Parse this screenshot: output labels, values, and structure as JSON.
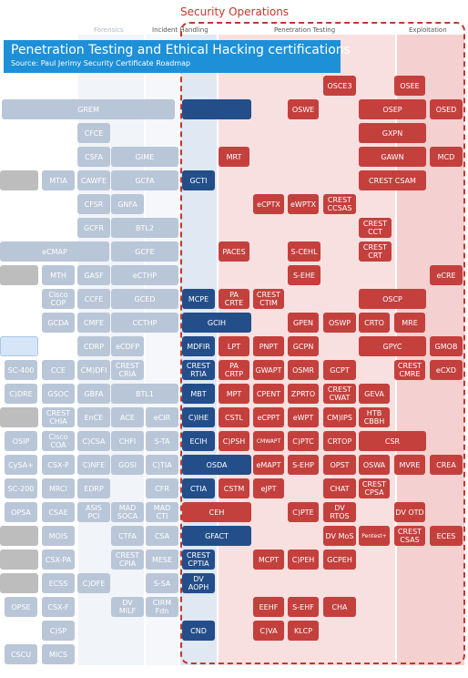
{
  "header": {
    "section_title": "Security Operations",
    "banner_title": "Penetration Testing and Ethical Hacking certifications",
    "banner_subtitle": "Source: Paul Jerimy Security Certificate Roadmap"
  },
  "columns": {
    "forensics": "Forensics",
    "incident": "Incident Handling",
    "pentest": "Penetration Testing",
    "exploitation": "Exploitation"
  },
  "colors": {
    "frame": "#c0392b",
    "banner": "#1e90d8",
    "pale_cert": "#b9c6d8",
    "grey_cert": "#bdbdbd",
    "navy_cert": "#234e8a",
    "red_cert": "#c4403d"
  },
  "certs": [
    {
      "label": "OSCE3",
      "style": "red"
    },
    {
      "label": "OSEE",
      "style": "red"
    },
    {
      "label": "GREM",
      "style": "pale"
    },
    {
      "label": "",
      "style": "navy"
    },
    {
      "label": "OSWE",
      "style": "red"
    },
    {
      "label": "OSEP",
      "style": "red"
    },
    {
      "label": "OSED",
      "style": "red"
    },
    {
      "label": "CFCE",
      "style": "pale"
    },
    {
      "label": "GXPN",
      "style": "red"
    },
    {
      "label": "CSFA",
      "style": "pale"
    },
    {
      "label": "GIME",
      "style": "pale"
    },
    {
      "label": "MRT",
      "style": "red"
    },
    {
      "label": "GAWN",
      "style": "red"
    },
    {
      "label": "MCD",
      "style": "red"
    },
    {
      "label": "",
      "style": "grey"
    },
    {
      "label": "MTIA",
      "style": "pale"
    },
    {
      "label": "CAWFE",
      "style": "pale"
    },
    {
      "label": "GCFA",
      "style": "pale"
    },
    {
      "label": "GCTI",
      "style": "navy"
    },
    {
      "label": "CREST CSAM",
      "style": "red"
    },
    {
      "label": "CFSR",
      "style": "pale"
    },
    {
      "label": "GNFA",
      "style": "pale"
    },
    {
      "label": "eCPTX",
      "style": "red"
    },
    {
      "label": "eWPTX",
      "style": "red"
    },
    {
      "label": "CREST\nCCSAS",
      "style": "red"
    },
    {
      "label": "GCFR",
      "style": "pale"
    },
    {
      "label": "BTL2",
      "style": "pale"
    },
    {
      "label": "CREST\nCCT",
      "style": "red"
    },
    {
      "label": "eCMAP",
      "style": "pale"
    },
    {
      "label": "GCFE",
      "style": "pale"
    },
    {
      "label": "PACES",
      "style": "red"
    },
    {
      "label": "S-CEHL",
      "style": "red"
    },
    {
      "label": "CREST\nCRT",
      "style": "red"
    },
    {
      "label": "",
      "style": "grey"
    },
    {
      "label": "MTH",
      "style": "pale"
    },
    {
      "label": "GASF",
      "style": "pale"
    },
    {
      "label": "eCTHP",
      "style": "pale"
    },
    {
      "label": "S-EHE",
      "style": "red"
    },
    {
      "label": "eCRE",
      "style": "red"
    },
    {
      "label": "Cisco\nCOP",
      "style": "pale"
    },
    {
      "label": "CCFE",
      "style": "pale"
    },
    {
      "label": "GCED",
      "style": "pale"
    },
    {
      "label": "MCPE",
      "style": "navy"
    },
    {
      "label": "PA\nCRTE",
      "style": "red"
    },
    {
      "label": "CREST\nCTIM",
      "style": "red"
    },
    {
      "label": "OSCP",
      "style": "red"
    },
    {
      "label": "GCDA",
      "style": "pale"
    },
    {
      "label": "CMFE",
      "style": "pale"
    },
    {
      "label": "CCTHP",
      "style": "pale"
    },
    {
      "label": "GCIH",
      "style": "navy"
    },
    {
      "label": "GPEN",
      "style": "red"
    },
    {
      "label": "OSWP",
      "style": "red"
    },
    {
      "label": "CRTO",
      "style": "red"
    },
    {
      "label": "MRE",
      "style": "red"
    },
    {
      "label": "",
      "style": "pblue"
    },
    {
      "label": "CDRP",
      "style": "pale"
    },
    {
      "label": "eCDFP",
      "style": "pale"
    },
    {
      "label": "MDFIR",
      "style": "navy"
    },
    {
      "label": "LPT",
      "style": "red"
    },
    {
      "label": "PNPT",
      "style": "red"
    },
    {
      "label": "GCPN",
      "style": "red"
    },
    {
      "label": "GPYC",
      "style": "red"
    },
    {
      "label": "GMOB",
      "style": "red"
    },
    {
      "label": "SC-400",
      "style": "pale"
    },
    {
      "label": "CCE",
      "style": "pale"
    },
    {
      "label": "CM)DFI",
      "style": "pale"
    },
    {
      "label": "CREST\nCRIA",
      "style": "pale"
    },
    {
      "label": "CREST\nRTIA",
      "style": "navy"
    },
    {
      "label": "PA\nCRTP",
      "style": "red"
    },
    {
      "label": "GWAPT",
      "style": "red"
    },
    {
      "label": "OSMR",
      "style": "red"
    },
    {
      "label": "GCPT",
      "style": "red"
    },
    {
      "label": "CREST\nCMRE",
      "style": "red"
    },
    {
      "label": "eCXD",
      "style": "red"
    },
    {
      "label": "C)DRE",
      "style": "pale"
    },
    {
      "label": "GSOC",
      "style": "pale"
    },
    {
      "label": "GBFA",
      "style": "pale"
    },
    {
      "label": "BTL1",
      "style": "pale"
    },
    {
      "label": "MBT",
      "style": "navy"
    },
    {
      "label": "MPT",
      "style": "red"
    },
    {
      "label": "CPENT",
      "style": "red"
    },
    {
      "label": "ZPRTO",
      "style": "red"
    },
    {
      "label": "CREST\nCWAT",
      "style": "red"
    },
    {
      "label": "GEVA",
      "style": "red"
    },
    {
      "label": "",
      "style": "grey"
    },
    {
      "label": "CREST\nCHIA",
      "style": "pale"
    },
    {
      "label": "EnCE",
      "style": "pale"
    },
    {
      "label": "ACE",
      "style": "pale"
    },
    {
      "label": "eCIR",
      "style": "pale"
    },
    {
      "label": "C)IHE",
      "style": "navy"
    },
    {
      "label": "CSTL",
      "style": "red"
    },
    {
      "label": "eCPPT",
      "style": "red"
    },
    {
      "label": "eWPT",
      "style": "red"
    },
    {
      "label": "CM)IPS",
      "style": "red"
    },
    {
      "label": "HTB\nCBBH",
      "style": "red"
    },
    {
      "label": "OSIP",
      "style": "pale"
    },
    {
      "label": "Cisco\nCOA",
      "style": "pale"
    },
    {
      "label": "C)CSA",
      "style": "pale"
    },
    {
      "label": "CHFI",
      "style": "pale"
    },
    {
      "label": "S-TA",
      "style": "pale"
    },
    {
      "label": "ECIH",
      "style": "navy"
    },
    {
      "label": "C)PSH",
      "style": "red"
    },
    {
      "label": "CMWAPT",
      "style": "red",
      "small": true
    },
    {
      "label": "C)PTC",
      "style": "red"
    },
    {
      "label": "CRTOP",
      "style": "red"
    },
    {
      "label": "CSR",
      "style": "red"
    },
    {
      "label": "CySA+",
      "style": "pale"
    },
    {
      "label": "CSX-P",
      "style": "pale"
    },
    {
      "label": "C)NFE",
      "style": "pale"
    },
    {
      "label": "GOSI",
      "style": "pale"
    },
    {
      "label": "C)TIA",
      "style": "pale"
    },
    {
      "label": "OSDA",
      "style": "navy"
    },
    {
      "label": "eMAPT",
      "style": "red"
    },
    {
      "label": "S-EHP",
      "style": "red"
    },
    {
      "label": "OPST",
      "style": "red"
    },
    {
      "label": "OSWA",
      "style": "red"
    },
    {
      "label": "MVRE",
      "style": "red"
    },
    {
      "label": "CREA",
      "style": "red"
    },
    {
      "label": "SC-200",
      "style": "pale"
    },
    {
      "label": "MRCI",
      "style": "pale"
    },
    {
      "label": "EDRP",
      "style": "pale"
    },
    {
      "label": "CFR",
      "style": "pale"
    },
    {
      "label": "CTIA",
      "style": "navy"
    },
    {
      "label": "CSTM",
      "style": "red"
    },
    {
      "label": "eJPT",
      "style": "red"
    },
    {
      "label": "CHAT",
      "style": "red"
    },
    {
      "label": "CREST\nCPSA",
      "style": "red"
    },
    {
      "label": "OPSA",
      "style": "pale"
    },
    {
      "label": "CSAE",
      "style": "pale"
    },
    {
      "label": "ASIS\nPCI",
      "style": "pale"
    },
    {
      "label": "MAD\nSOCA",
      "style": "pale"
    },
    {
      "label": "MAD\nCTI",
      "style": "pale"
    },
    {
      "label": "CEH",
      "style": "red"
    },
    {
      "label": "C)PTE",
      "style": "red"
    },
    {
      "label": "DV\nRTOS",
      "style": "red"
    },
    {
      "label": "DV OTD",
      "style": "red"
    },
    {
      "label": "",
      "style": "grey"
    },
    {
      "label": "MOIS",
      "style": "pale"
    },
    {
      "label": "CTFA",
      "style": "pale"
    },
    {
      "label": "CSA",
      "style": "pale"
    },
    {
      "label": "GFACT",
      "style": "navy"
    },
    {
      "label": "DV MoS",
      "style": "red"
    },
    {
      "label": "Pentest+",
      "style": "red",
      "small": true
    },
    {
      "label": "CREST\nCSAS",
      "style": "red"
    },
    {
      "label": "ECES",
      "style": "red"
    },
    {
      "label": "",
      "style": "grey"
    },
    {
      "label": "CSX-PA",
      "style": "pale"
    },
    {
      "label": "CREST\nCPIA",
      "style": "pale"
    },
    {
      "label": "MESE",
      "style": "pale"
    },
    {
      "label": "CREST\nCPTIA",
      "style": "navy"
    },
    {
      "label": "MCPT",
      "style": "red"
    },
    {
      "label": "C)PEH",
      "style": "red"
    },
    {
      "label": "GCPEH",
      "style": "red"
    },
    {
      "label": "",
      "style": "grey"
    },
    {
      "label": "ECSS",
      "style": "pale"
    },
    {
      "label": "C)DFE",
      "style": "pale"
    },
    {
      "label": "S-SA",
      "style": "pale"
    },
    {
      "label": "DV\nAOPH",
      "style": "navy"
    },
    {
      "label": "OPSE",
      "style": "pale"
    },
    {
      "label": "CSX-F",
      "style": "pale"
    },
    {
      "label": "DV\nMILF",
      "style": "pale"
    },
    {
      "label": "CIRM\nFdn",
      "style": "pale"
    },
    {
      "label": "EEHF",
      "style": "red"
    },
    {
      "label": "S-EHF",
      "style": "red"
    },
    {
      "label": "CHA",
      "style": "red"
    },
    {
      "label": "C)SP",
      "style": "pale"
    },
    {
      "label": "CND",
      "style": "navy"
    },
    {
      "label": "C)VA",
      "style": "red"
    },
    {
      "label": "KLCP",
      "style": "red"
    },
    {
      "label": "CSCU",
      "style": "pale"
    },
    {
      "label": "MICS",
      "style": "pale"
    }
  ]
}
